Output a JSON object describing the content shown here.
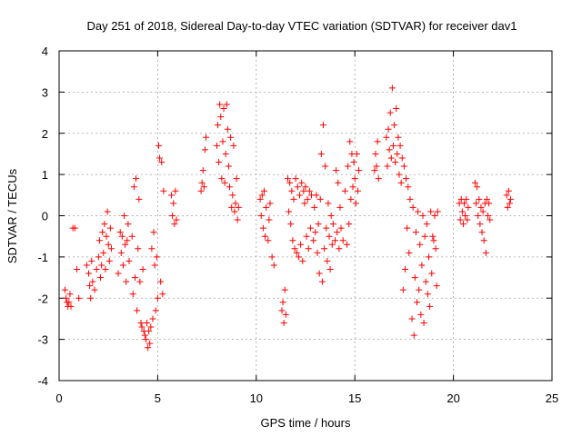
{
  "chart_data": {
    "type": "scatter",
    "title": "Day 251 of 2018, Sidereal Day-to-day VTEC variation (SDTVAR) for receiver dav1",
    "xlabel": "GPS time / hours",
    "ylabel": "SDTVAR / TECUs",
    "xlim": [
      0,
      25
    ],
    "ylim": [
      -4,
      4
    ],
    "xticks": [
      0,
      5,
      10,
      15,
      20,
      25
    ],
    "yticks": [
      -4,
      -3,
      -2,
      -1,
      0,
      1,
      2,
      3,
      4
    ],
    "x_tick_labels": [
      "0",
      "5",
      "10",
      "15",
      "20",
      "25"
    ],
    "y_tick_labels": [
      "-4",
      "-3",
      "-2",
      "-1",
      "0",
      "1",
      "2",
      "3",
      "4"
    ],
    "grid": true,
    "marker": "+",
    "color": "#ff0000",
    "series": [
      {
        "name": "dav1",
        "points": [
          [
            0.3,
            -1.8
          ],
          [
            0.35,
            -2.0
          ],
          [
            0.4,
            -2.1
          ],
          [
            0.45,
            -2.2
          ],
          [
            0.5,
            -2.1
          ],
          [
            0.55,
            -1.9
          ],
          [
            0.6,
            -2.2
          ],
          [
            0.7,
            -0.3
          ],
          [
            0.8,
            -0.3
          ],
          [
            0.9,
            -1.3
          ],
          [
            1.0,
            -2.0
          ],
          [
            1.4,
            -1.2
          ],
          [
            1.5,
            -1.4
          ],
          [
            1.55,
            -1.7
          ],
          [
            1.6,
            -2.0
          ],
          [
            1.65,
            -1.1
          ],
          [
            1.7,
            -1.6
          ],
          [
            1.8,
            -1.8
          ],
          [
            1.9,
            -1.3
          ],
          [
            2.0,
            -1.0
          ],
          [
            2.05,
            -0.6
          ],
          [
            2.1,
            -1.5
          ],
          [
            2.15,
            -1.2
          ],
          [
            2.2,
            -0.4
          ],
          [
            2.25,
            -0.9
          ],
          [
            2.3,
            -0.2
          ],
          [
            2.35,
            -1.3
          ],
          [
            2.4,
            -0.5
          ],
          [
            2.45,
            0.1
          ],
          [
            2.5,
            -0.7
          ],
          [
            2.55,
            -1.1
          ],
          [
            2.6,
            -0.3
          ],
          [
            2.65,
            -0.8
          ],
          [
            3.0,
            -1.4
          ],
          [
            3.1,
            -0.4
          ],
          [
            3.15,
            -0.9
          ],
          [
            3.2,
            -0.5
          ],
          [
            3.25,
            -1.2
          ],
          [
            3.3,
            0.0
          ],
          [
            3.35,
            -0.7
          ],
          [
            3.4,
            -1.6
          ],
          [
            3.45,
            -0.6
          ],
          [
            3.5,
            -0.2
          ],
          [
            3.55,
            -1.1
          ],
          [
            3.7,
            -0.5
          ],
          [
            3.75,
            -1.9
          ],
          [
            3.8,
            0.7
          ],
          [
            3.85,
            -1.5
          ],
          [
            3.9,
            0.9
          ],
          [
            3.95,
            -2.3
          ],
          [
            4.0,
            -0.8
          ],
          [
            4.05,
            0.4
          ],
          [
            4.1,
            -1.6
          ],
          [
            4.15,
            -2.6
          ],
          [
            4.2,
            -2.7
          ],
          [
            4.25,
            -1.3
          ],
          [
            4.3,
            -2.8
          ],
          [
            4.35,
            -2.9
          ],
          [
            4.4,
            -3.0
          ],
          [
            4.45,
            -2.6
          ],
          [
            4.5,
            -3.2
          ],
          [
            4.55,
            -2.8
          ],
          [
            4.6,
            -3.1
          ],
          [
            4.65,
            -2.7
          ],
          [
            4.7,
            -0.8
          ],
          [
            4.75,
            -2.5
          ],
          [
            4.8,
            -0.4
          ],
          [
            4.85,
            -1.2
          ],
          [
            4.9,
            -2.3
          ],
          [
            4.95,
            -1.0
          ],
          [
            5.0,
            -2.0
          ],
          [
            5.05,
            1.7
          ],
          [
            5.1,
            1.4
          ],
          [
            5.15,
            -1.6
          ],
          [
            5.2,
            1.3
          ],
          [
            5.25,
            -1.9
          ],
          [
            5.3,
            0.6
          ],
          [
            5.7,
            0.5
          ],
          [
            5.75,
            0.0
          ],
          [
            5.8,
            0.3
          ],
          [
            5.85,
            -0.2
          ],
          [
            5.9,
            0.6
          ],
          [
            5.95,
            -0.1
          ],
          [
            7.2,
            0.6
          ],
          [
            7.25,
            0.8
          ],
          [
            7.3,
            1.1
          ],
          [
            7.35,
            0.7
          ],
          [
            7.4,
            1.6
          ],
          [
            7.45,
            1.9
          ],
          [
            8.0,
            1.7
          ],
          [
            8.05,
            2.2
          ],
          [
            8.1,
            1.3
          ],
          [
            8.15,
            2.7
          ],
          [
            8.2,
            2.4
          ],
          [
            8.25,
            0.9
          ],
          [
            8.3,
            1.8
          ],
          [
            8.35,
            2.6
          ],
          [
            8.4,
            0.8
          ],
          [
            8.45,
            1.5
          ],
          [
            8.5,
            2.7
          ],
          [
            8.55,
            2.1
          ],
          [
            8.6,
            1.2
          ],
          [
            8.65,
            0.7
          ],
          [
            8.7,
            1.9
          ],
          [
            8.75,
            0.2
          ],
          [
            8.8,
            0.5
          ],
          [
            8.85,
            1.7
          ],
          [
            8.9,
            0.1
          ],
          [
            8.95,
            0.3
          ],
          [
            9.0,
            0.9
          ],
          [
            9.05,
            -0.1
          ],
          [
            9.1,
            0.2
          ],
          [
            10.2,
            0.4
          ],
          [
            10.25,
            0.0
          ],
          [
            10.3,
            0.5
          ],
          [
            10.35,
            -0.3
          ],
          [
            10.4,
            0.6
          ],
          [
            10.45,
            -0.5
          ],
          [
            10.5,
            0.2
          ],
          [
            10.6,
            -0.6
          ],
          [
            10.65,
            -0.1
          ],
          [
            10.7,
            0.3
          ],
          [
            10.8,
            -1.0
          ],
          [
            10.9,
            -1.2
          ],
          [
            11.3,
            -2.3
          ],
          [
            11.35,
            -2.1
          ],
          [
            11.4,
            -2.6
          ],
          [
            11.45,
            -1.8
          ],
          [
            11.5,
            -2.4
          ],
          [
            11.6,
            0.9
          ],
          [
            11.65,
            0.1
          ],
          [
            11.7,
            0.8
          ],
          [
            11.75,
            -0.2
          ],
          [
            11.8,
            0.6
          ],
          [
            11.85,
            -0.6
          ],
          [
            11.9,
            0.4
          ],
          [
            11.95,
            -0.8
          ],
          [
            12.0,
            0.9
          ],
          [
            12.05,
            -0.9
          ],
          [
            12.1,
            0.7
          ],
          [
            12.15,
            -1.0
          ],
          [
            12.2,
            0.5
          ],
          [
            12.25,
            -0.7
          ],
          [
            12.3,
            0.8
          ],
          [
            12.35,
            -1.1
          ],
          [
            12.4,
            0.6
          ],
          [
            12.45,
            0.3
          ],
          [
            12.5,
            0.7
          ],
          [
            12.55,
            -0.5
          ],
          [
            12.6,
            0.4
          ],
          [
            12.65,
            -0.8
          ],
          [
            12.7,
            0.6
          ],
          [
            12.75,
            -0.3
          ],
          [
            12.8,
            0.5
          ],
          [
            12.9,
            -0.6
          ],
          [
            12.95,
            0.2
          ],
          [
            13.0,
            -0.4
          ],
          [
            13.05,
            0.5
          ],
          [
            13.1,
            -0.9
          ],
          [
            13.15,
            -0.2
          ],
          [
            13.2,
            -1.4
          ],
          [
            13.25,
            0.4
          ],
          [
            13.3,
            1.5
          ],
          [
            13.35,
            -1.6
          ],
          [
            13.4,
            2.2
          ],
          [
            13.45,
            -0.8
          ],
          [
            13.5,
            1.2
          ],
          [
            13.55,
            -0.3
          ],
          [
            13.6,
            -1.1
          ],
          [
            13.65,
            0.3
          ],
          [
            13.7,
            -0.5
          ],
          [
            13.75,
            -1.3
          ],
          [
            13.8,
            0.0
          ],
          [
            13.85,
            -0.7
          ],
          [
            13.9,
            -0.2
          ],
          [
            14.0,
            -0.6
          ],
          [
            14.05,
            1.1
          ],
          [
            14.1,
            -0.4
          ],
          [
            14.15,
            0.8
          ],
          [
            14.2,
            -0.8
          ],
          [
            14.25,
            0.2
          ],
          [
            14.3,
            -0.3
          ],
          [
            14.4,
            -0.6
          ],
          [
            14.5,
            0.6
          ],
          [
            14.6,
            -0.7
          ],
          [
            14.65,
            1.2
          ],
          [
            14.7,
            -0.2
          ],
          [
            14.75,
            1.8
          ],
          [
            14.8,
            0.4
          ],
          [
            14.85,
            1.5
          ],
          [
            14.9,
            0.7
          ],
          [
            14.95,
            1.3
          ],
          [
            15.0,
            0.9
          ],
          [
            15.05,
            0.3
          ],
          [
            15.1,
            1.5
          ],
          [
            15.15,
            0.6
          ],
          [
            15.2,
            1.1
          ],
          [
            16.0,
            1.1
          ],
          [
            16.05,
            1.5
          ],
          [
            16.1,
            1.2
          ],
          [
            16.15,
            1.8
          ],
          [
            16.2,
            0.9
          ],
          [
            16.6,
            1.9
          ],
          [
            16.65,
            1.2
          ],
          [
            16.7,
            2.1
          ],
          [
            16.75,
            1.6
          ],
          [
            16.8,
            2.5
          ],
          [
            16.85,
            1.4
          ],
          [
            16.9,
            3.1
          ],
          [
            16.95,
            1.7
          ],
          [
            17.0,
            2.2
          ],
          [
            17.05,
            1.3
          ],
          [
            17.1,
            2.6
          ],
          [
            17.15,
            1.5
          ],
          [
            17.2,
            1.9
          ],
          [
            17.25,
            1.0
          ],
          [
            17.3,
            1.7
          ],
          [
            17.35,
            0.8
          ],
          [
            17.4,
            1.4
          ],
          [
            17.45,
            -1.8
          ],
          [
            17.5,
            1.2
          ],
          [
            17.55,
            -1.3
          ],
          [
            17.6,
            0.9
          ],
          [
            17.65,
            -0.3
          ],
          [
            17.7,
            0.7
          ],
          [
            17.75,
            -0.9
          ],
          [
            17.8,
            0.4
          ],
          [
            17.9,
            -2.5
          ],
          [
            17.95,
            0.2
          ],
          [
            18.0,
            -2.9
          ],
          [
            18.05,
            -1.5
          ],
          [
            18.1,
            -0.4
          ],
          [
            18.15,
            -2.1
          ],
          [
            18.2,
            0.1
          ],
          [
            18.25,
            -1.8
          ],
          [
            18.3,
            -0.7
          ],
          [
            18.35,
            -2.4
          ],
          [
            18.4,
            -1.2
          ],
          [
            18.45,
            0.0
          ],
          [
            18.5,
            -2.6
          ],
          [
            18.55,
            -0.5
          ],
          [
            18.6,
            -1.6
          ],
          [
            18.65,
            -0.2
          ],
          [
            18.7,
            -1.9
          ],
          [
            18.75,
            -1.0
          ],
          [
            18.8,
            -2.2
          ],
          [
            18.85,
            0.1
          ],
          [
            18.9,
            -1.4
          ],
          [
            18.95,
            -0.5
          ],
          [
            19.0,
            -0.6
          ],
          [
            19.05,
            0.0
          ],
          [
            19.1,
            -0.8
          ],
          [
            19.15,
            -1.7
          ],
          [
            19.2,
            0.1
          ],
          [
            20.3,
            0.3
          ],
          [
            20.35,
            -0.1
          ],
          [
            20.4,
            0.4
          ],
          [
            20.45,
            0.1
          ],
          [
            20.5,
            -0.2
          ],
          [
            20.55,
            0.3
          ],
          [
            20.6,
            0.0
          ],
          [
            20.65,
            0.4
          ],
          [
            20.7,
            -0.1
          ],
          [
            20.75,
            0.2
          ],
          [
            21.1,
            0.8
          ],
          [
            21.15,
            0.3
          ],
          [
            21.2,
            0.7
          ],
          [
            21.25,
            0.0
          ],
          [
            21.3,
            0.4
          ],
          [
            21.35,
            -0.2
          ],
          [
            21.4,
            0.2
          ],
          [
            21.45,
            -0.4
          ],
          [
            21.5,
            0.1
          ],
          [
            21.55,
            -0.6
          ],
          [
            21.6,
            0.3
          ],
          [
            21.65,
            -0.9
          ],
          [
            21.7,
            0.4
          ],
          [
            21.75,
            0.0
          ],
          [
            21.8,
            0.3
          ],
          [
            21.85,
            -0.1
          ],
          [
            22.7,
            0.5
          ],
          [
            22.75,
            0.2
          ],
          [
            22.8,
            0.6
          ],
          [
            22.85,
            0.3
          ],
          [
            22.9,
            0.4
          ]
        ]
      }
    ]
  }
}
